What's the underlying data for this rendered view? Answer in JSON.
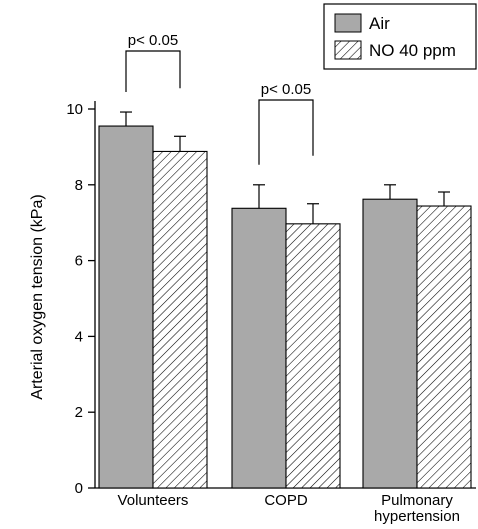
{
  "chart_data": {
    "type": "bar",
    "categories": [
      "Volunteers",
      "COPD",
      "Pulmonary hypertension"
    ],
    "category_lines": [
      [
        "Volunteers"
      ],
      [
        "COPD"
      ],
      [
        "Pulmonary",
        "hypertension"
      ]
    ],
    "ylabel": "Arterial oxygen tension (kPa)",
    "xlabel": "",
    "ylim": [
      0,
      10
    ],
    "yticks": [
      0,
      2,
      4,
      6,
      8,
      10
    ],
    "grid": false,
    "legend_position": "top-right",
    "series": [
      {
        "name": "Air",
        "values": [
          9.55,
          7.38,
          7.62
        ],
        "errors": [
          0.37,
          0.62,
          0.38
        ],
        "fill": "solid-gray",
        "color": "#a9a9a9"
      },
      {
        "name": "NO 40 ppm",
        "values": [
          8.88,
          6.97,
          7.44
        ],
        "errors": [
          0.4,
          0.53,
          0.37
        ],
        "fill": "hatched",
        "color": "#000000"
      }
    ],
    "annotations": [
      {
        "text": "p< 0.05",
        "category": "Volunteers"
      },
      {
        "text": "p< 0.05",
        "category": "COPD"
      }
    ]
  }
}
